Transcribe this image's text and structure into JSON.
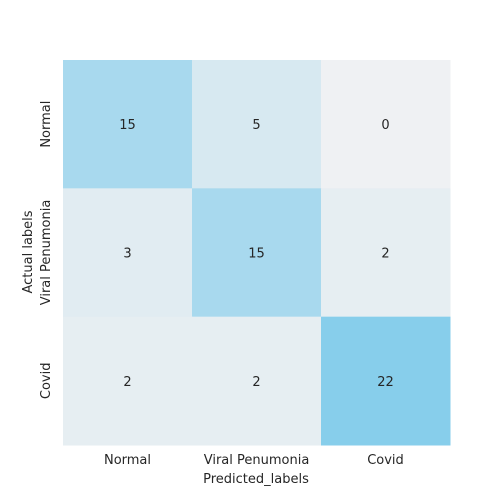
{
  "chart_data": {
    "type": "heatmap",
    "title": "",
    "xlabel": "Predicted_labels",
    "ylabel": "Actual labels",
    "x_categories": [
      "Normal",
      "Viral Penumonia",
      "Covid"
    ],
    "y_categories": [
      "Normal",
      "Viral Penumonia",
      "Covid"
    ],
    "values": [
      [
        15,
        5,
        0
      ],
      [
        3,
        15,
        2
      ],
      [
        2,
        2,
        22
      ]
    ],
    "colormap": {
      "low": "#eff1f3",
      "high": "#87ceeb"
    },
    "value_range": [
      0,
      22
    ],
    "colorbar": false,
    "grid": false
  }
}
